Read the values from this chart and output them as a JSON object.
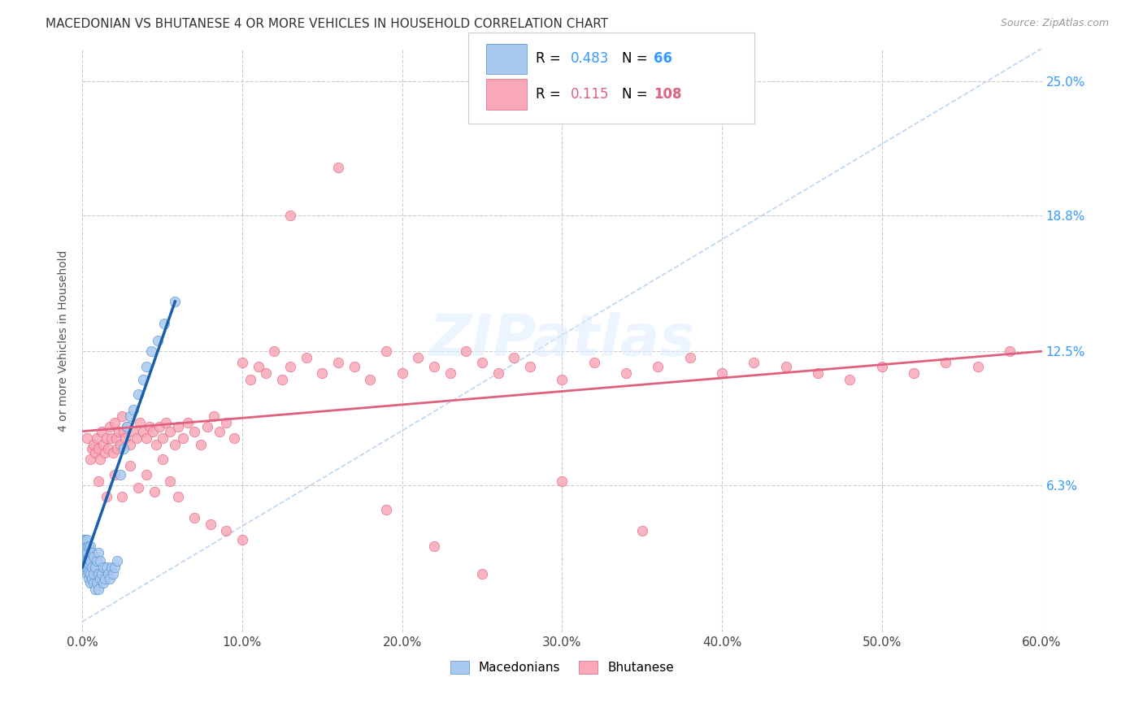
{
  "title": "MACEDONIAN VS BHUTANESE 4 OR MORE VEHICLES IN HOUSEHOLD CORRELATION CHART",
  "source": "Source: ZipAtlas.com",
  "ylabel": "4 or more Vehicles in Household",
  "xlim": [
    0.0,
    0.6
  ],
  "ylim": [
    -0.005,
    0.265
  ],
  "xtick_vals": [
    0.0,
    0.1,
    0.2,
    0.3,
    0.4,
    0.5,
    0.6
  ],
  "ytick_vals": [
    0.063,
    0.125,
    0.188,
    0.25
  ],
  "ytick_labels": [
    "6.3%",
    "12.5%",
    "18.8%",
    "25.0%"
  ],
  "macedonian_color": "#a8c8f0",
  "bhutanese_color": "#f8a8b8",
  "macedonian_edge_color": "#5090c8",
  "bhutanese_edge_color": "#e06080",
  "macedonian_line_color": "#1a5faa",
  "bhutanese_line_color": "#e06080",
  "diagonal_color": "#aaccee",
  "R_macedonian": "0.483",
  "N_macedonian": "66",
  "R_bhutanese": "0.115",
  "N_bhutanese": "108",
  "legend_label_macedonian": "Macedonians",
  "legend_label_bhutanese": "Bhutanese",
  "mac_x": [
    0.001,
    0.001,
    0.001,
    0.001,
    0.001,
    0.001,
    0.002,
    0.002,
    0.002,
    0.002,
    0.002,
    0.002,
    0.002,
    0.003,
    0.003,
    0.003,
    0.003,
    0.003,
    0.003,
    0.004,
    0.004,
    0.004,
    0.004,
    0.004,
    0.005,
    0.005,
    0.005,
    0.005,
    0.006,
    0.006,
    0.006,
    0.007,
    0.007,
    0.007,
    0.008,
    0.008,
    0.009,
    0.009,
    0.01,
    0.01,
    0.01,
    0.011,
    0.011,
    0.012,
    0.013,
    0.013,
    0.014,
    0.015,
    0.016,
    0.017,
    0.018,
    0.019,
    0.02,
    0.022,
    0.024,
    0.026,
    0.028,
    0.03,
    0.032,
    0.035,
    0.038,
    0.04,
    0.043,
    0.047,
    0.051,
    0.058
  ],
  "mac_y": [
    0.028,
    0.03,
    0.032,
    0.033,
    0.035,
    0.038,
    0.025,
    0.027,
    0.03,
    0.032,
    0.034,
    0.036,
    0.038,
    0.022,
    0.025,
    0.028,
    0.032,
    0.035,
    0.038,
    0.02,
    0.023,
    0.027,
    0.03,
    0.035,
    0.018,
    0.022,
    0.028,
    0.035,
    0.02,
    0.025,
    0.032,
    0.018,
    0.022,
    0.03,
    0.015,
    0.025,
    0.018,
    0.028,
    0.015,
    0.022,
    0.032,
    0.02,
    0.028,
    0.022,
    0.018,
    0.025,
    0.02,
    0.025,
    0.022,
    0.02,
    0.025,
    0.022,
    0.025,
    0.028,
    0.068,
    0.08,
    0.09,
    0.095,
    0.098,
    0.105,
    0.112,
    0.118,
    0.125,
    0.13,
    0.138,
    0.148
  ],
  "bhu_x": [
    0.003,
    0.005,
    0.006,
    0.007,
    0.008,
    0.009,
    0.01,
    0.011,
    0.012,
    0.013,
    0.014,
    0.015,
    0.016,
    0.017,
    0.018,
    0.019,
    0.02,
    0.021,
    0.022,
    0.023,
    0.024,
    0.025,
    0.026,
    0.027,
    0.028,
    0.03,
    0.032,
    0.034,
    0.036,
    0.038,
    0.04,
    0.042,
    0.044,
    0.046,
    0.048,
    0.05,
    0.052,
    0.055,
    0.058,
    0.06,
    0.063,
    0.066,
    0.07,
    0.074,
    0.078,
    0.082,
    0.086,
    0.09,
    0.095,
    0.1,
    0.105,
    0.11,
    0.115,
    0.12,
    0.125,
    0.13,
    0.14,
    0.15,
    0.16,
    0.17,
    0.18,
    0.19,
    0.2,
    0.21,
    0.22,
    0.23,
    0.24,
    0.25,
    0.26,
    0.27,
    0.28,
    0.3,
    0.32,
    0.34,
    0.36,
    0.38,
    0.4,
    0.42,
    0.44,
    0.46,
    0.48,
    0.5,
    0.52,
    0.54,
    0.56,
    0.58,
    0.01,
    0.015,
    0.02,
    0.025,
    0.03,
    0.035,
    0.04,
    0.045,
    0.05,
    0.055,
    0.06,
    0.07,
    0.08,
    0.09,
    0.1,
    0.13,
    0.16,
    0.19,
    0.22,
    0.25,
    0.3,
    0.35
  ],
  "bhu_y": [
    0.085,
    0.075,
    0.08,
    0.082,
    0.078,
    0.085,
    0.08,
    0.075,
    0.088,
    0.082,
    0.078,
    0.085,
    0.08,
    0.09,
    0.085,
    0.078,
    0.092,
    0.085,
    0.08,
    0.088,
    0.082,
    0.095,
    0.088,
    0.085,
    0.09,
    0.082,
    0.088,
    0.085,
    0.092,
    0.088,
    0.085,
    0.09,
    0.088,
    0.082,
    0.09,
    0.085,
    0.092,
    0.088,
    0.082,
    0.09,
    0.085,
    0.092,
    0.088,
    0.082,
    0.09,
    0.095,
    0.088,
    0.092,
    0.085,
    0.12,
    0.112,
    0.118,
    0.115,
    0.125,
    0.112,
    0.118,
    0.122,
    0.115,
    0.12,
    0.118,
    0.112,
    0.125,
    0.115,
    0.122,
    0.118,
    0.115,
    0.125,
    0.12,
    0.115,
    0.122,
    0.118,
    0.112,
    0.12,
    0.115,
    0.118,
    0.122,
    0.115,
    0.12,
    0.118,
    0.115,
    0.112,
    0.118,
    0.115,
    0.12,
    0.118,
    0.125,
    0.065,
    0.058,
    0.068,
    0.058,
    0.072,
    0.062,
    0.068,
    0.06,
    0.075,
    0.065,
    0.058,
    0.048,
    0.045,
    0.042,
    0.038,
    0.188,
    0.21,
    0.052,
    0.035,
    0.022,
    0.065,
    0.042
  ]
}
